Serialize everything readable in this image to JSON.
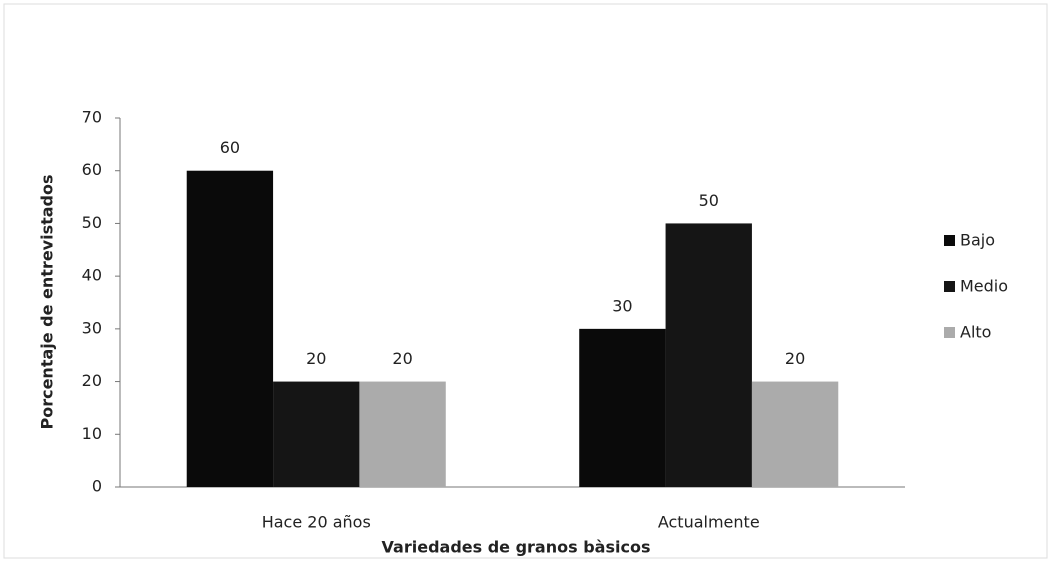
{
  "chart_data": {
    "type": "bar",
    "categories": [
      "Hace 20 años",
      "Actualmente"
    ],
    "series": [
      {
        "name": "Bajo",
        "color": "#0a0a0a",
        "values": [
          60,
          30
        ]
      },
      {
        "name": "Medio",
        "color": "#151515",
        "values": [
          20,
          50
        ]
      },
      {
        "name": "Alto",
        "color": "#ababab",
        "values": [
          20,
          20
        ]
      }
    ],
    "x_label": "Variedades de granos bàsicos",
    "y_label": "Porcentaje de entrevistados",
    "ylim": [
      0,
      70
    ],
    "yticks": [
      0,
      10,
      20,
      30,
      40,
      50,
      60,
      70
    ],
    "grid": false,
    "legend": "right"
  }
}
